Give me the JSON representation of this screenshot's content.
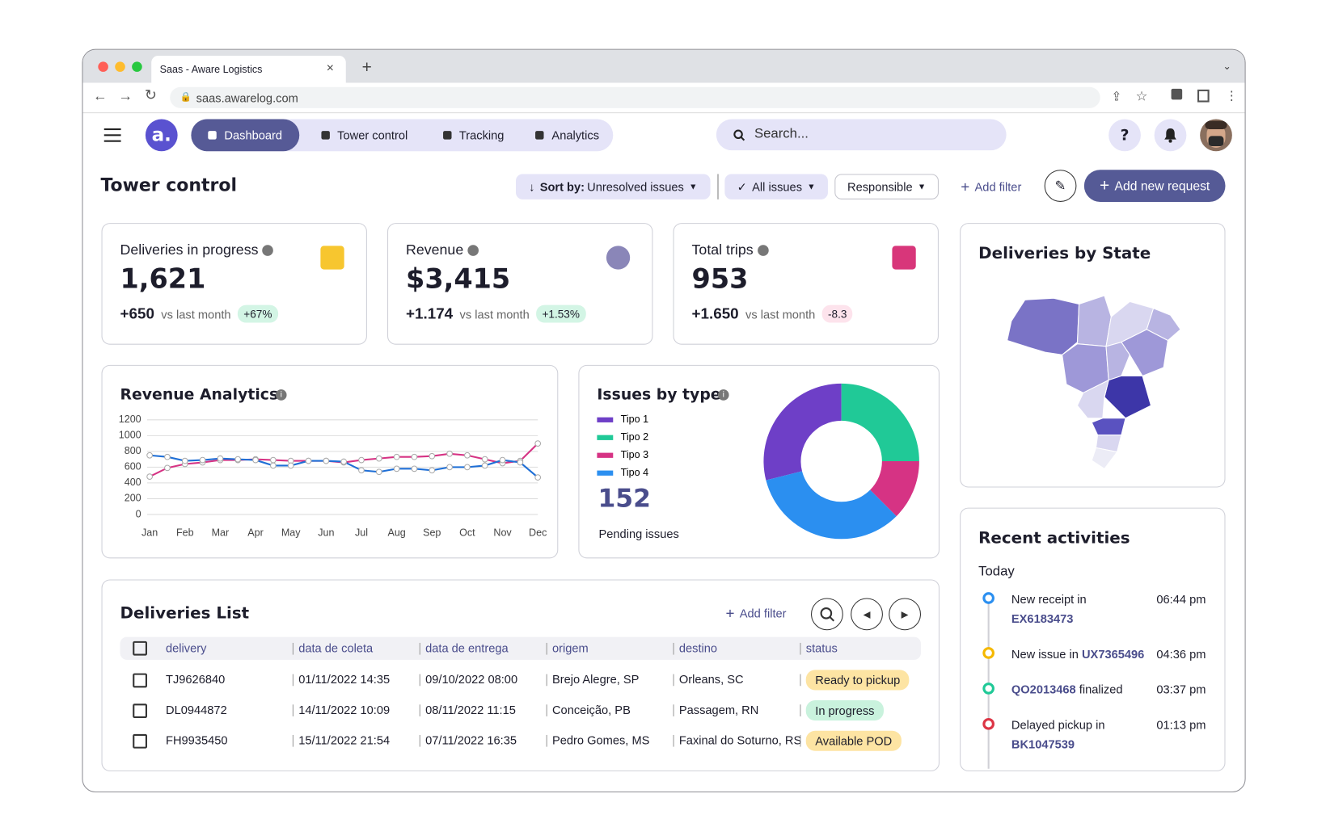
{
  "browser": {
    "tab_title": "Saas - Aware Logistics",
    "url": "saas.awarelog.com"
  },
  "nav": {
    "logo": "a.",
    "items": [
      "Dashboard",
      "Tower control",
      "Tracking",
      "Analytics"
    ],
    "search": "Search...",
    "help": "?"
  },
  "toolbar": {
    "title": "Tower control",
    "sort_label": "Sort by:",
    "sort_value": "Unresolved issues",
    "filters": [
      "All issues",
      "Responsible"
    ],
    "add_filter": "Add filter",
    "add_request": "Add new request"
  },
  "kpis": [
    {
      "label": "Deliveries in progress",
      "value": "1,621",
      "delta": "+650",
      "note": "vs last month",
      "change": "+67%",
      "change_color": "#d3f5e5"
    },
    {
      "label": "Revenue",
      "value": "$3,415",
      "delta": "+1.174",
      "note": "vs last month",
      "change": "+1.53%",
      "change_color": "#d3f5e5"
    },
    {
      "label": "Total trips",
      "value": "953",
      "delta": "+1.650",
      "note": "vs last month",
      "change": "-8.3",
      "change_color": "#fde3ec"
    }
  ],
  "revenue_chart": {
    "type": "line",
    "title": "Revenue Analytics",
    "categories": [
      "Jan",
      null,
      "Feb",
      null,
      "Mar",
      null,
      "Apr",
      null,
      "May",
      null,
      "Jun",
      null,
      "Jul",
      null,
      "Aug",
      null,
      "Sep",
      null,
      "Oct",
      null,
      "Nov",
      null,
      "Dec"
    ],
    "series": [
      {
        "color": "#d63384",
        "values": [
          480,
          590,
          640,
          660,
          690,
          690,
          700,
          690,
          680,
          680,
          680,
          660,
          690,
          710,
          730,
          730,
          740,
          770,
          750,
          700,
          650,
          680,
          900
        ]
      },
      {
        "color": "#1f6fd6",
        "values": [
          750,
          730,
          680,
          690,
          710,
          700,
          690,
          620,
          620,
          680,
          680,
          670,
          560,
          540,
          580,
          580,
          560,
          600,
          600,
          620,
          690,
          660,
          470
        ]
      }
    ],
    "ylim": [
      0,
      1200
    ],
    "yticks": [
      0,
      200,
      400,
      600,
      800,
      1000,
      1200
    ],
    "grid": true
  },
  "issues_chart": {
    "type": "pie",
    "title": "Issues by type",
    "total": "152",
    "total_label": "Pending issues",
    "series": [
      {
        "name": "Tipo 1",
        "color": "#6e3fc7",
        "value": 44
      },
      {
        "name": "Tipo 2",
        "color": "#20c997",
        "value": 38
      },
      {
        "name": "Tipo 3",
        "color": "#d63384",
        "value": 19
      },
      {
        "name": "Tipo 4",
        "color": "#2b8ff0",
        "value": 51
      }
    ]
  },
  "map": {
    "title": "Deliveries by State"
  },
  "activities": {
    "title": "Recent activities",
    "day": "Today",
    "items": [
      {
        "before": "New receipt in",
        "code": "EX6183473",
        "time": "06:44 pm",
        "color": "#2b8ff0"
      },
      {
        "before": "New issue in",
        "code": "UX7365496",
        "time": "04:36 pm",
        "color": "#f5b800"
      },
      {
        "code": "QO2013468",
        "after": "finalized",
        "time": "03:37 pm",
        "color": "#20c997"
      },
      {
        "before": "Delayed pickup in",
        "code": "BK1047539",
        "time": "01:13 pm",
        "color": "#dc3545"
      }
    ]
  },
  "deliveries": {
    "title": "Deliveries List",
    "add_filter": "Add filter",
    "columns": [
      "delivery",
      "data de coleta",
      "data de entrega",
      "origem",
      "destino",
      "status"
    ],
    "rows": [
      [
        "TJ9626840",
        "01/11/2022 14:35",
        "09/10/2022 08:00",
        "Brejo Alegre, SP",
        "Orleans, SC",
        "Ready to pickup"
      ],
      [
        "DL0944872",
        "14/11/2022 10:09",
        "08/11/2022 11:15",
        "Conceição, PB",
        "Passagem, RN",
        "In progress"
      ],
      [
        "FH9935450",
        "15/11/2022 21:54",
        "07/11/2022 16:35",
        "Pedro Gomes, MS",
        "Faxinal do Soturno, RS",
        "Available POD"
      ]
    ],
    "status_colors": [
      "#fde4a3",
      "#c9f2dd",
      "#fde4a3"
    ]
  }
}
